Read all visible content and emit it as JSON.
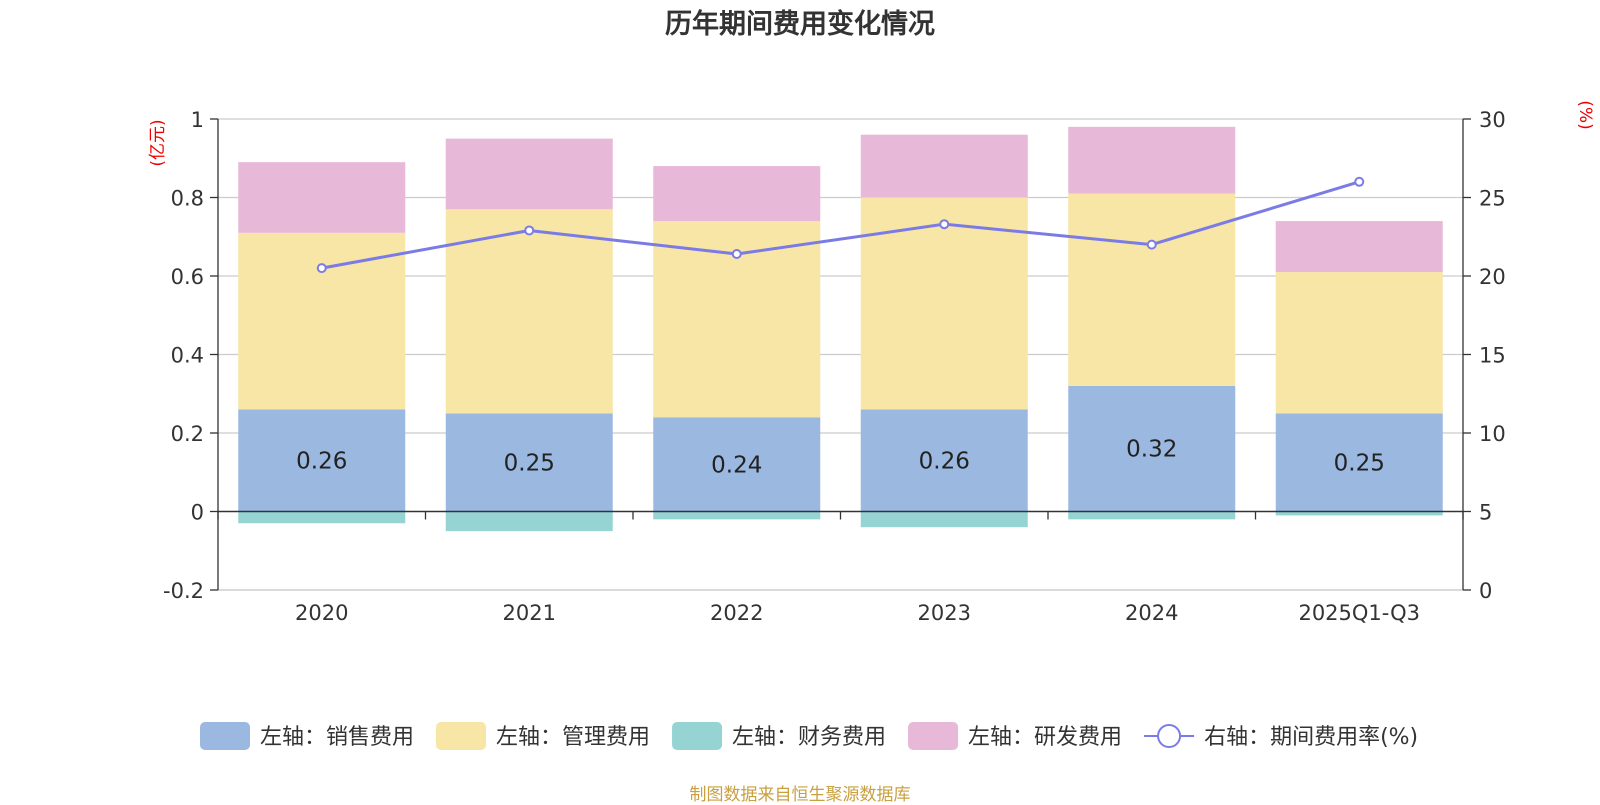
{
  "title": "历年期间费用变化情况",
  "source": "制图数据来自恒生聚源数据库",
  "chart_data": {
    "type": "bar",
    "stacked": true,
    "categories": [
      "2020",
      "2021",
      "2022",
      "2023",
      "2024",
      "2025Q1-Q3"
    ],
    "left_axis": {
      "unit": "(亿元)",
      "range": [
        -0.2,
        1
      ],
      "ticks": [
        "-0.2",
        "0",
        "0.2",
        "0.4",
        "0.6",
        "0.8",
        "1"
      ]
    },
    "right_axis": {
      "unit": "(%)",
      "range": [
        0,
        30
      ],
      "ticks": [
        "0",
        "5",
        "10",
        "15",
        "20",
        "25",
        "30"
      ]
    },
    "series": [
      {
        "name": "左轴：销售费用",
        "axis": "left",
        "type": "bar",
        "color": "#9bb8e0",
        "values": [
          0.26,
          0.25,
          0.24,
          0.26,
          0.32,
          0.25
        ],
        "labels": [
          "0.26",
          "0.25",
          "0.24",
          "0.26",
          "0.32",
          "0.25"
        ]
      },
      {
        "name": "左轴：管理费用",
        "axis": "left",
        "type": "bar",
        "color": "#f7e6a6",
        "values": [
          0.45,
          0.52,
          0.5,
          0.54,
          0.49,
          0.36
        ]
      },
      {
        "name": "左轴：财务费用",
        "axis": "left",
        "type": "bar",
        "color": "#96d4d4",
        "values": [
          -0.03,
          -0.05,
          -0.02,
          -0.04,
          -0.02,
          -0.01
        ]
      },
      {
        "name": "左轴：研发费用",
        "axis": "left",
        "type": "bar",
        "color": "#e8b8d8",
        "values": [
          0.18,
          0.18,
          0.14,
          0.16,
          0.17,
          0.13
        ]
      },
      {
        "name": "右轴：期间费用率(%)",
        "axis": "right",
        "type": "line",
        "color": "#7b7be6",
        "values": [
          20.5,
          22.9,
          21.4,
          23.3,
          22.0,
          26.0
        ]
      }
    ]
  }
}
